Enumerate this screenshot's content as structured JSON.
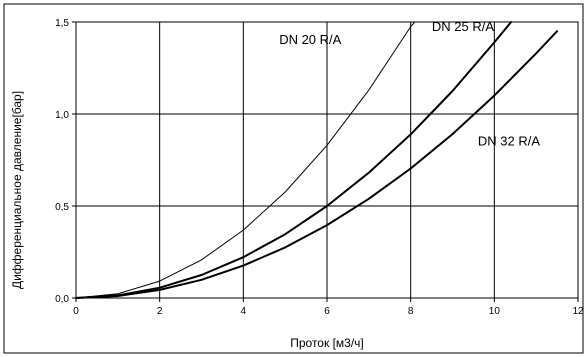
{
  "chart_data": {
    "type": "line",
    "xlabel": "Проток [м3/ч]",
    "ylabel": "Дифференциальное давление[бар]",
    "xlim": [
      0,
      12
    ],
    "ylim": [
      0,
      1.5
    ],
    "x_ticks": [
      "0",
      "2",
      "4",
      "6",
      "8",
      "10",
      "12"
    ],
    "y_ticks": [
      "0,0",
      "0,5",
      "1,0",
      "1,5"
    ],
    "grid": true,
    "legend": "none",
    "series": [
      {
        "name": "DN 20 R/A",
        "x": [
          0,
          1,
          2,
          3,
          4,
          5,
          6,
          7,
          8,
          8.1
        ],
        "y": [
          0,
          0.023,
          0.092,
          0.207,
          0.369,
          0.576,
          0.83,
          1.13,
          1.475,
          1.5
        ]
      },
      {
        "name": "DN 25 R/A",
        "x": [
          0,
          1,
          2,
          3,
          4,
          5,
          6,
          7,
          8,
          9,
          10,
          10.4
        ],
        "y": [
          0,
          0.014,
          0.056,
          0.125,
          0.222,
          0.347,
          0.5,
          0.681,
          0.889,
          1.125,
          1.389,
          1.5
        ]
      },
      {
        "name": "DN 32 R/A",
        "x": [
          0,
          1,
          2,
          3,
          4,
          5,
          6,
          7,
          8,
          9,
          10,
          11,
          11.5
        ],
        "y": [
          0,
          0.011,
          0.044,
          0.099,
          0.176,
          0.275,
          0.396,
          0.539,
          0.704,
          0.891,
          1.1,
          1.33,
          1.45
        ]
      }
    ]
  }
}
